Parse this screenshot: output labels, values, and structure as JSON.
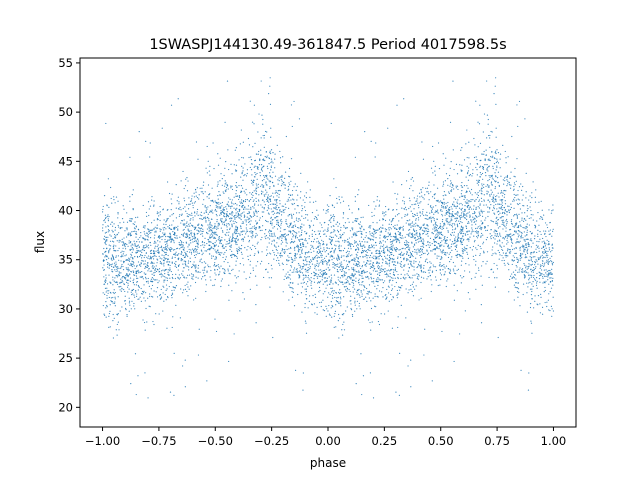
{
  "chart_data": {
    "type": "scatter",
    "title": "1SWASPJ144130.49-361847.5 Period 4017598.5s",
    "xlabel": "phase",
    "ylabel": "flux",
    "xlim": [
      -1.1,
      1.1
    ],
    "ylim": [
      18.0,
      55.5
    ],
    "xticks": [
      -1.0,
      -0.75,
      -0.5,
      -0.25,
      0.0,
      0.25,
      0.5,
      0.75,
      1.0
    ],
    "xtick_labels": [
      "−1.00",
      "−0.75",
      "−0.50",
      "−0.25",
      "0.00",
      "0.25",
      "0.50",
      "0.75",
      "1.00"
    ],
    "yticks": [
      20,
      25,
      30,
      35,
      40,
      45,
      50,
      55
    ],
    "ytick_labels": [
      "20",
      "25",
      "30",
      "35",
      "40",
      "45",
      "50",
      "55"
    ],
    "grid": false,
    "legend": "none",
    "color": "#1f77b4",
    "series": [
      {
        "description": "folded light curve, the phase range [0,1] repeated at [-1,0]",
        "profile_phase": [
          0.0,
          0.05,
          0.1,
          0.15,
          0.2,
          0.25,
          0.3,
          0.35,
          0.4,
          0.45,
          0.5,
          0.55,
          0.6,
          0.65,
          0.7,
          0.75,
          0.8,
          0.85,
          0.9,
          0.95,
          1.0
        ],
        "profile_median_flux": [
          35.0,
          34.5,
          34.5,
          35.0,
          35.5,
          35.5,
          36.0,
          36.5,
          37.0,
          37.5,
          38.0,
          38.5,
          39.0,
          40.0,
          41.0,
          40.0,
          38.5,
          37.0,
          36.0,
          35.5,
          35.0
        ],
        "profile_spread": [
          3.5,
          4.0,
          4.0,
          3.5,
          3.5,
          3.5,
          3.5,
          3.5,
          3.5,
          3.5,
          4.0,
          4.0,
          4.0,
          4.5,
          5.0,
          4.5,
          4.0,
          4.0,
          3.5,
          3.5,
          3.5
        ],
        "flux_min": 19.5,
        "flux_max": 53.5
      }
    ]
  }
}
